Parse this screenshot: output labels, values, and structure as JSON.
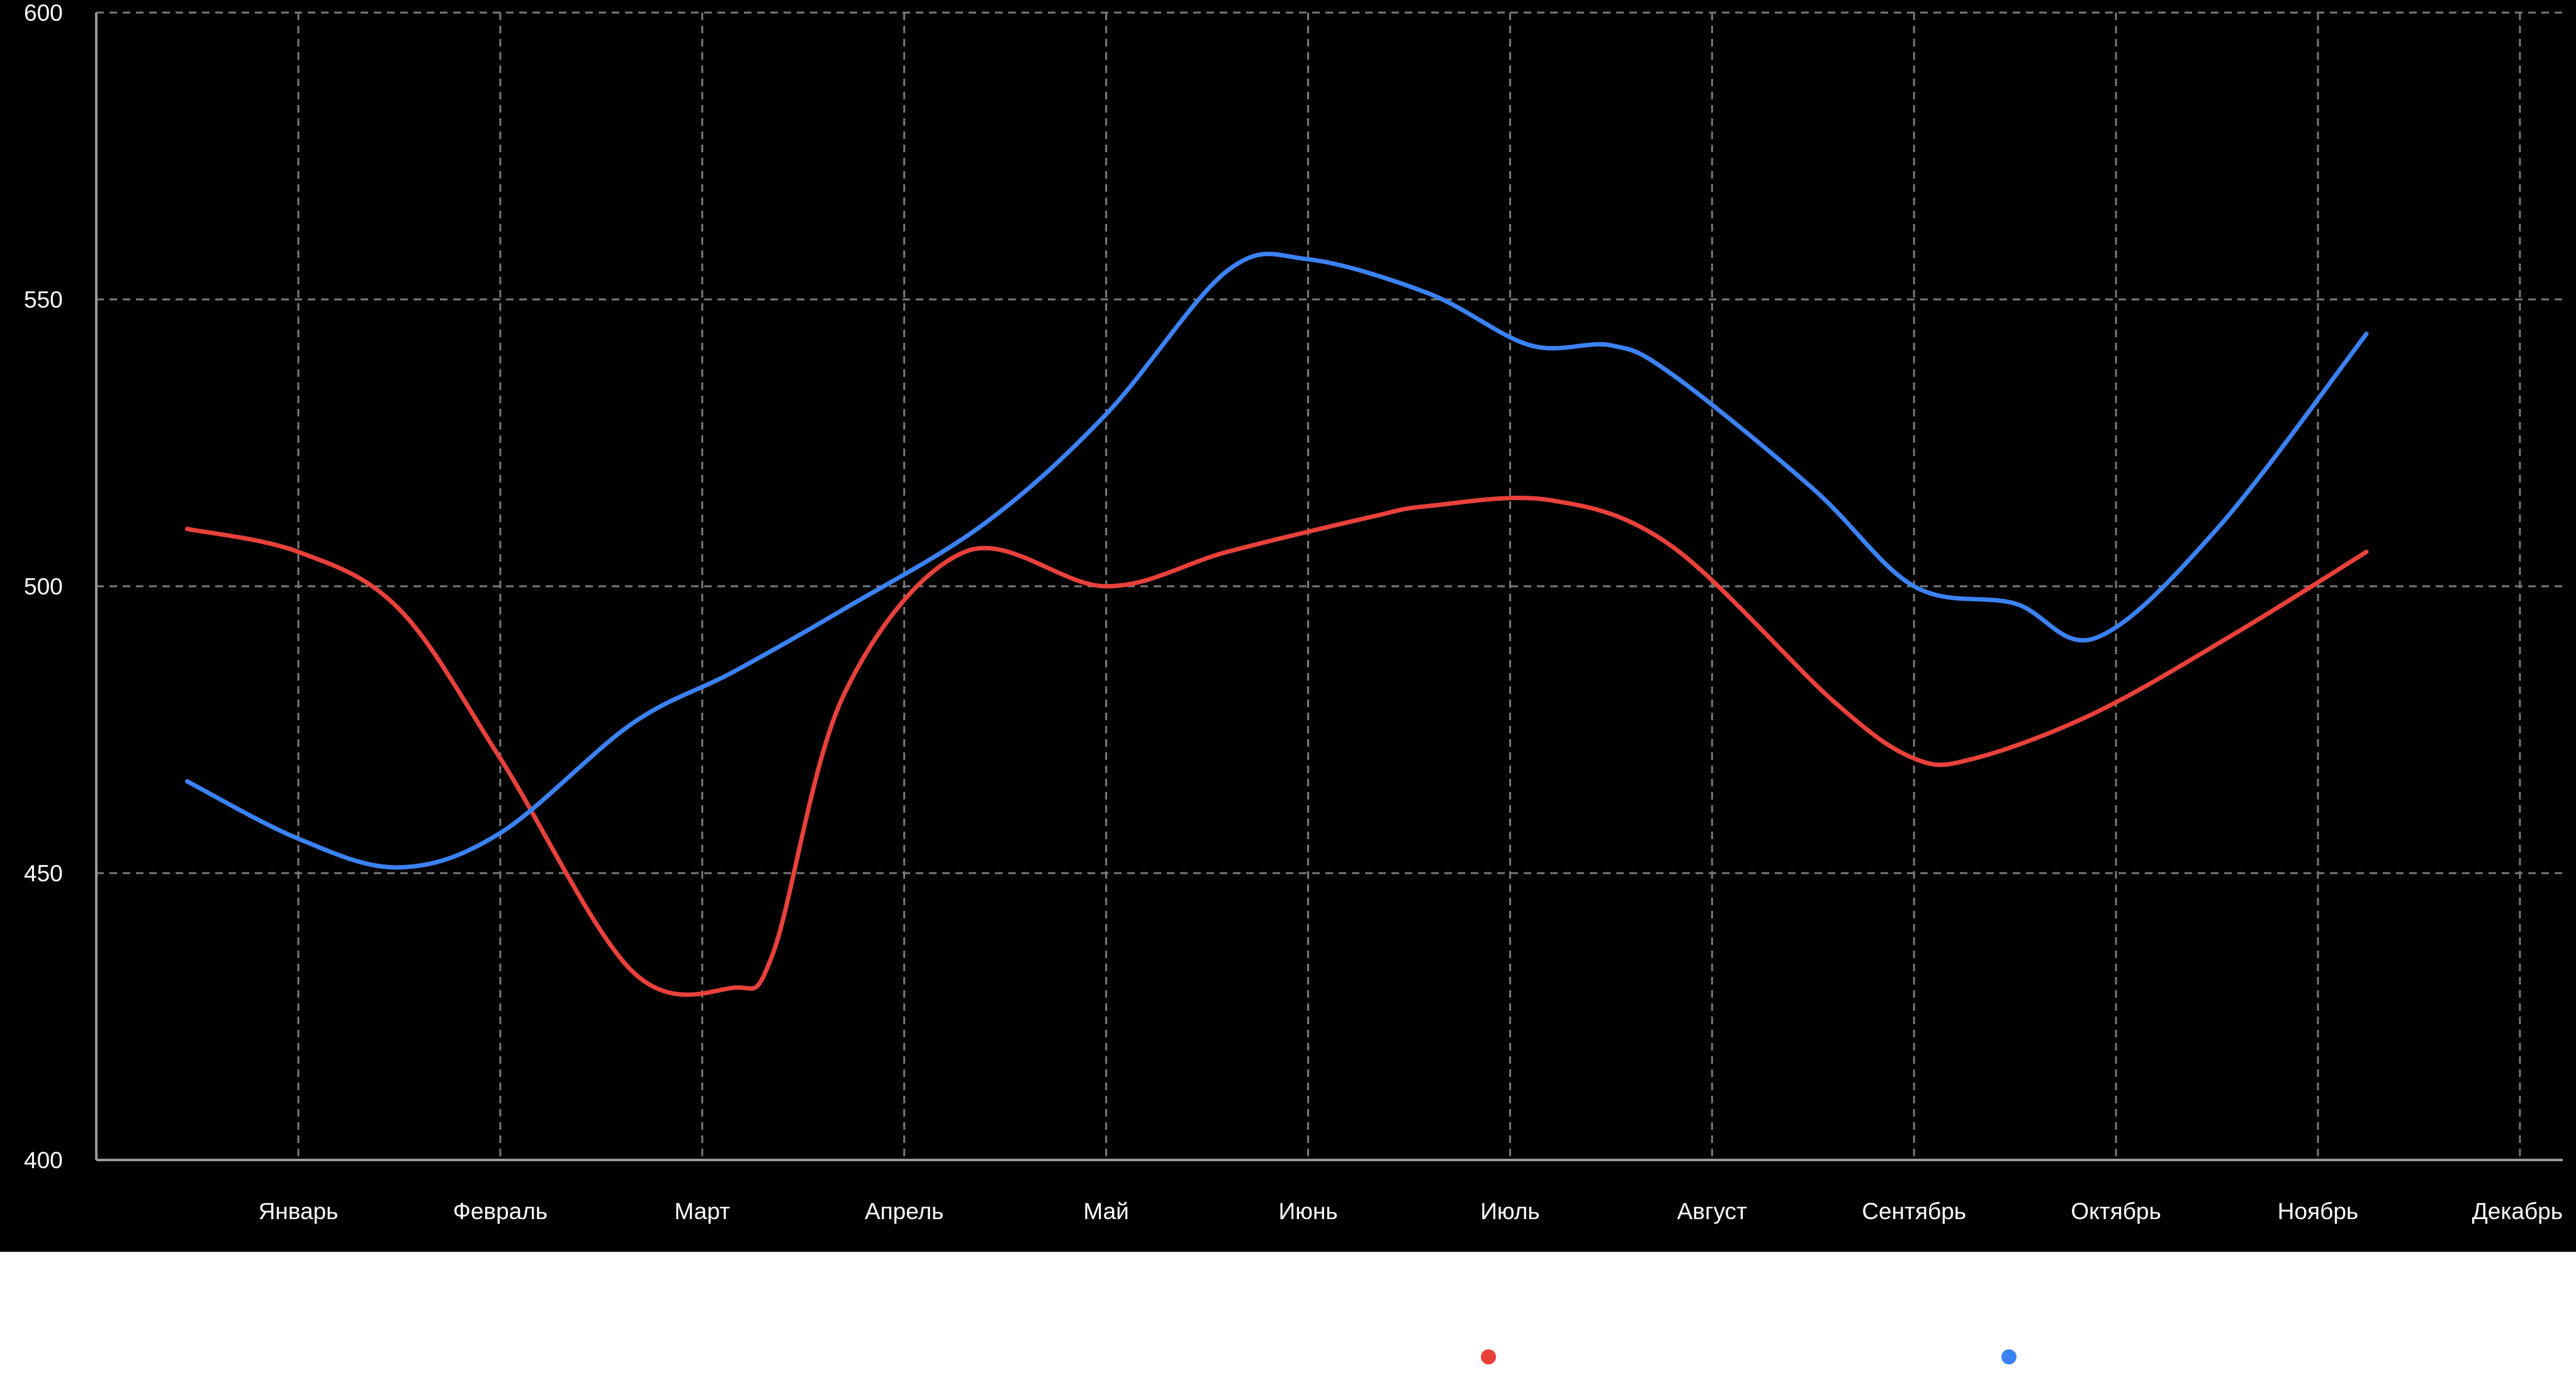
{
  "chart_data": {
    "type": "line",
    "title": "",
    "xlabel": "",
    "ylabel": "",
    "categories": [
      "Январь",
      "Февраль",
      "Март",
      "Апрель",
      "Май",
      "Июнь",
      "Июль",
      "Август",
      "Сентябрь",
      "Октябрь",
      "Ноябрь",
      "Декабрь"
    ],
    "ylim": [
      400,
      600
    ],
    "yticks": [
      400,
      450,
      500,
      550,
      600
    ],
    "grid": true,
    "legend_position": "bottom",
    "background": "#000000",
    "text_color": "#ffffff",
    "grid_color": "#7a7a7a",
    "series": [
      {
        "name": "",
        "color": "#e8413b",
        "x": [
          0.45,
          1.0,
          1.5,
          2.0,
          2.65,
          3.15,
          3.35,
          3.7,
          4.3,
          5.0,
          5.6,
          6.3,
          6.6,
          7.2,
          7.8,
          8.6,
          9.0,
          9.3,
          9.9,
          10.6,
          11.24
        ],
        "values": [
          510,
          506,
          496,
          470,
          433,
          430,
          436,
          481,
          506,
          500,
          506,
          512,
          514,
          515,
          507,
          480,
          470,
          470,
          478,
          492,
          506
        ]
      },
      {
        "name": "",
        "color": "#3b82f5",
        "x": [
          0.45,
          1.0,
          1.5,
          2.0,
          2.65,
          3.15,
          3.7,
          4.4,
          5.0,
          5.6,
          6.0,
          6.6,
          7.1,
          7.5,
          7.8,
          8.5,
          9.0,
          9.5,
          9.9,
          10.5,
          11.24
        ],
        "values": [
          466,
          456,
          451,
          457,
          476,
          485,
          496,
          511,
          530,
          555,
          557,
          551,
          542,
          542,
          537,
          517,
          500,
          497,
          491,
          510,
          544
        ]
      }
    ]
  }
}
